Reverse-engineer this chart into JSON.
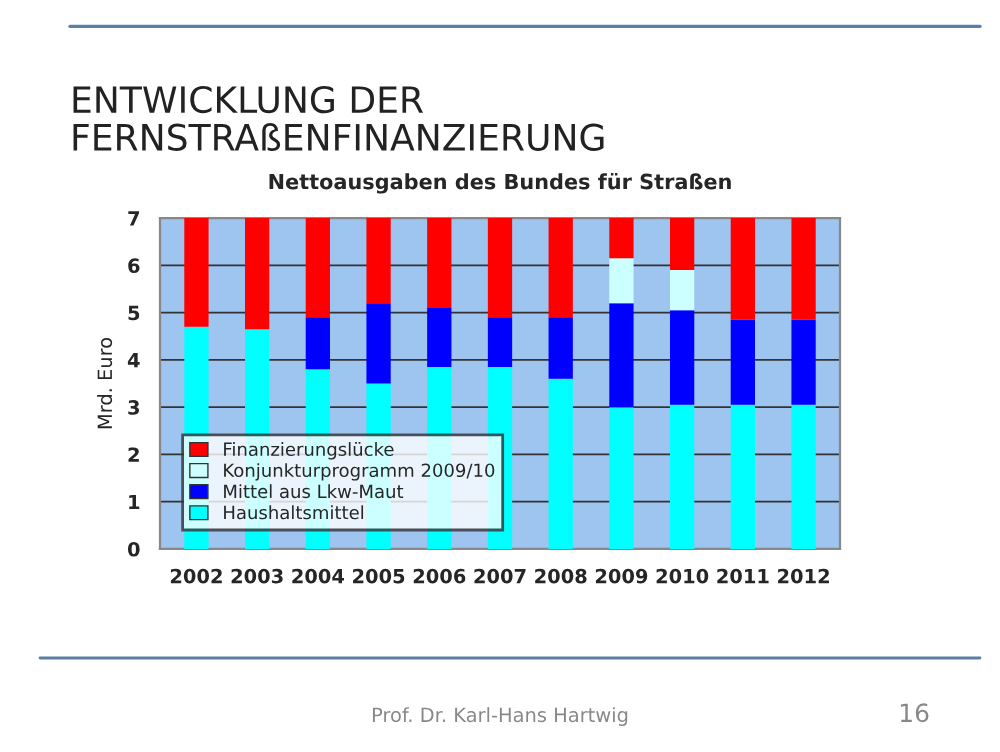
{
  "chart_data": {
    "type": "bar",
    "title": "ENTWICKLUNG DER\nFERNSTRAßENFINANZIERUNG",
    "subtitle": "Nettoausgaben des Bundes für Straßen",
    "ylabel": "Mrd. Euro",
    "categories": [
      "2002",
      "2003",
      "2004",
      "2005",
      "2006",
      "2007",
      "2008",
      "2009",
      "2010",
      "2011",
      "2012"
    ],
    "stacked": true,
    "series": [
      {
        "name": "Haushaltsmittel",
        "color": "#00ffff",
        "values": [
          4.7,
          4.65,
          3.8,
          3.5,
          3.85,
          3.85,
          3.6,
          3.0,
          3.05,
          3.05,
          3.05
        ]
      },
      {
        "name": "Mittel aus Lkw-Maut",
        "color": "#0000ff",
        "values": [
          0,
          0,
          1.1,
          1.7,
          1.25,
          1.05,
          1.3,
          2.2,
          2.0,
          1.8,
          1.8
        ]
      },
      {
        "name": "Konjunkturprogramm 2009/10",
        "color": "#ccffff",
        "values": [
          0,
          0,
          0,
          0,
          0,
          0,
          0,
          0.95,
          0.85,
          0,
          0
        ]
      },
      {
        "name": "Finanzierungslücke",
        "color": "#ff0000",
        "values": [
          2.3,
          2.35,
          2.1,
          1.8,
          1.9,
          2.1,
          2.1,
          0.85,
          1.1,
          2.15,
          2.15
        ]
      }
    ],
    "ylim": [
      0,
      7
    ],
    "yticks": [
      0,
      1,
      2,
      3,
      4,
      5,
      6,
      7
    ],
    "grid": "y",
    "legend": "bottom left",
    "annotations": [
      "Prof. Dr. Karl-Hans Hartwig",
      "16"
    ]
  }
}
